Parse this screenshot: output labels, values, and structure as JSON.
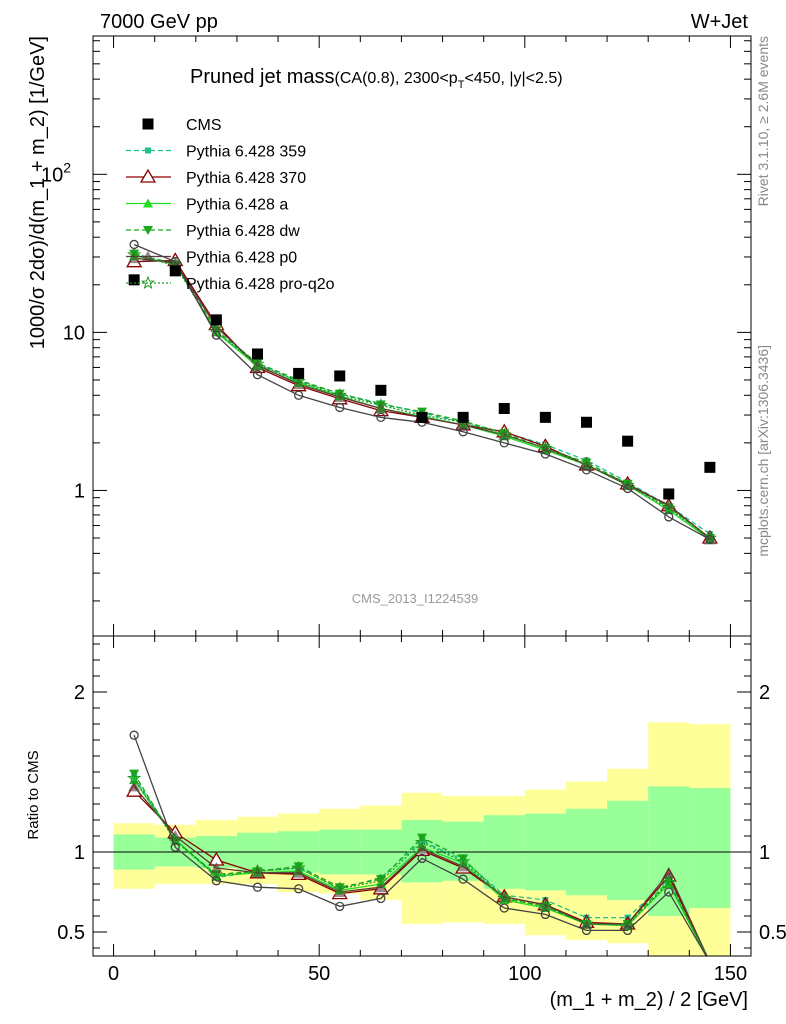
{
  "header": {
    "energy_label": "7000 GeV pp",
    "process_label": "W+Jet"
  },
  "chart_data": {
    "type": "line",
    "title": "Pruned jet mass",
    "title_detail_prefix": "(CA(0.8), 2300<p",
    "title_detail_sub": "T",
    "title_detail_suffix": "<450, |y|<2.5)",
    "xlabel": "(m_1 + m_2) / 2 [GeV]",
    "ylabel_main": "1000/σ 2dσ)/d(m_1 + m_2) [1/GeV]",
    "ylabel_ratio": "Ratio to CMS",
    "main_yscale": "log",
    "xlim": [
      -5,
      155
    ],
    "main_ylim": [
      0.12,
      750
    ],
    "ratio_ylim": [
      0.35,
      2.35
    ],
    "x_ticks": [
      {
        "value": 0,
        "label": "0"
      },
      {
        "value": 50,
        "label": "50"
      },
      {
        "value": 100,
        "label": "100"
      },
      {
        "value": 150,
        "label": "150"
      }
    ],
    "main_y_ticks": [
      {
        "value": 1,
        "label": "1"
      },
      {
        "value": 10,
        "label": "10"
      },
      {
        "value": 100,
        "label": "10",
        "sup": "2"
      }
    ],
    "ratio_y_ticks": [
      {
        "value": 0.5,
        "label": "0.5"
      },
      {
        "value": 1,
        "label": "1"
      },
      {
        "value": 2,
        "label": "2"
      }
    ],
    "side_label_top": "Rivet 3.1.10, ≥ 2.6M events",
    "side_label_bottom": "mcplots.cern.ch [arXiv:1306.3436]",
    "watermark": "CMS_2013_I1224539",
    "legend_position": "top-left",
    "data": {
      "name": "CMS",
      "x": [
        5,
        15,
        25,
        35,
        45,
        55,
        65,
        75,
        85,
        95,
        105,
        115,
        125,
        135,
        145
      ],
      "y": [
        21.5,
        24.5,
        12.0,
        7.3,
        5.5,
        5.3,
        4.3,
        2.9,
        2.9,
        3.3,
        2.9,
        2.7,
        2.05,
        0.95,
        1.4
      ],
      "band_edges": [
        0,
        10,
        20,
        30,
        40,
        50,
        60,
        70,
        80,
        90,
        100,
        110,
        120,
        130,
        140,
        150
      ],
      "stat_band": [
        [
          0.89,
          1.11
        ],
        [
          0.91,
          1.09
        ],
        [
          0.9,
          1.1
        ],
        [
          0.88,
          1.12
        ],
        [
          0.87,
          1.13
        ],
        [
          0.86,
          1.14
        ],
        [
          0.86,
          1.14
        ],
        [
          0.81,
          1.2
        ],
        [
          0.82,
          1.19
        ],
        [
          0.77,
          1.23
        ],
        [
          0.76,
          1.24
        ],
        [
          0.73,
          1.27
        ],
        [
          0.7,
          1.32
        ],
        [
          0.6,
          1.41
        ],
        [
          0.65,
          1.4
        ]
      ],
      "total_band": [
        [
          0.77,
          1.18
        ],
        [
          0.8,
          1.17
        ],
        [
          0.8,
          1.2
        ],
        [
          0.8,
          1.22
        ],
        [
          0.75,
          1.24
        ],
        [
          0.74,
          1.27
        ],
        [
          0.7,
          1.29
        ],
        [
          0.55,
          1.37
        ],
        [
          0.56,
          1.35
        ],
        [
          0.55,
          1.35
        ],
        [
          0.48,
          1.39
        ],
        [
          0.45,
          1.44
        ],
        [
          0.43,
          1.52
        ],
        [
          0.3,
          1.81
        ],
        [
          0.3,
          1.8
        ]
      ]
    },
    "series": [
      {
        "name": "Pythia 6.428 359",
        "color": "#1fbf8f",
        "dash": "5,3",
        "marker": "square-small",
        "y": [
          31.0,
          27.5,
          10.0,
          6.3,
          4.9,
          4.1,
          3.55,
          3.1,
          2.7,
          2.33,
          1.95,
          1.55,
          1.13,
          0.8,
          0.53
        ],
        "ratio": [
          1.47,
          1.08,
          0.84,
          0.88,
          0.9,
          0.77,
          0.84,
          1.07,
          0.95,
          0.73,
          0.7,
          0.59,
          0.59,
          0.83,
          0.31
        ]
      },
      {
        "name": "Pythia 6.428 370",
        "color": "#8b0000",
        "dash": "",
        "marker": "triangle-open",
        "y": [
          28.0,
          28.5,
          11.2,
          6.0,
          4.6,
          3.8,
          3.2,
          2.9,
          2.6,
          2.35,
          1.9,
          1.45,
          1.1,
          0.8,
          0.5
        ],
        "ratio": [
          1.38,
          1.12,
          0.95,
          0.87,
          0.86,
          0.74,
          0.77,
          1.01,
          0.9,
          0.72,
          0.67,
          0.56,
          0.55,
          0.85,
          0.31
        ]
      },
      {
        "name": "Pythia 6.428 a",
        "color": "#22dd22",
        "dash": "",
        "marker": "triangle-filled",
        "y": [
          30.5,
          27.0,
          10.0,
          6.1,
          4.8,
          3.95,
          3.3,
          2.95,
          2.6,
          2.2,
          1.8,
          1.45,
          1.08,
          0.75,
          0.49
        ],
        "ratio": [
          1.45,
          1.08,
          0.85,
          0.87,
          0.88,
          0.76,
          0.8,
          1.03,
          0.93,
          0.7,
          0.65,
          0.55,
          0.54,
          0.8,
          0.31
        ]
      },
      {
        "name": "Pythia 6.428 dw",
        "color": "#1aa81a",
        "dash": "5,3",
        "marker": "triangle-down",
        "y": [
          31.5,
          27.0,
          10.3,
          6.4,
          5.0,
          4.1,
          3.5,
          3.15,
          2.75,
          2.3,
          1.85,
          1.5,
          1.1,
          0.78,
          0.5
        ],
        "ratio": [
          1.49,
          1.07,
          0.86,
          0.88,
          0.91,
          0.78,
          0.83,
          1.09,
          0.96,
          0.71,
          0.66,
          0.55,
          0.55,
          0.82,
          0.31
        ]
      },
      {
        "name": "Pythia 6.428 p0",
        "color": "#5a3a3a",
        "dash": "",
        "marker": "triangle-dark",
        "y": [
          29.5,
          27.5,
          10.8,
          6.2,
          4.7,
          3.9,
          3.3,
          2.9,
          2.6,
          2.25,
          1.85,
          1.45,
          1.08,
          0.81,
          0.49
        ],
        "ratio": [
          1.41,
          1.1,
          0.9,
          0.87,
          0.87,
          0.75,
          0.78,
          1.02,
          0.91,
          0.72,
          0.67,
          0.55,
          0.55,
          0.87,
          0.31
        ]
      },
      {
        "name": "Pythia 6.428 pro-q2o",
        "color": "#1f9a1f",
        "dash": "2,2",
        "marker": "star",
        "y": [
          31.0,
          26.5,
          10.1,
          6.3,
          4.9,
          4.0,
          3.45,
          3.0,
          2.7,
          2.25,
          1.85,
          1.45,
          1.08,
          0.77,
          0.5
        ],
        "ratio": [
          1.46,
          1.07,
          0.85,
          0.88,
          0.9,
          0.77,
          0.82,
          1.06,
          0.94,
          0.71,
          0.66,
          0.55,
          0.54,
          0.81,
          0.31
        ]
      },
      {
        "name": "",
        "color": "#444444",
        "dash": "",
        "marker": "circle-open",
        "y": [
          36.0,
          28.0,
          9.6,
          5.4,
          4.0,
          3.35,
          2.9,
          2.7,
          2.35,
          2.0,
          1.7,
          1.35,
          1.03,
          0.68,
          0.49
        ],
        "ratio": [
          1.73,
          1.03,
          0.82,
          0.78,
          0.77,
          0.66,
          0.71,
          0.96,
          0.83,
          0.65,
          0.61,
          0.51,
          0.51,
          0.75,
          0.31
        ]
      }
    ]
  }
}
